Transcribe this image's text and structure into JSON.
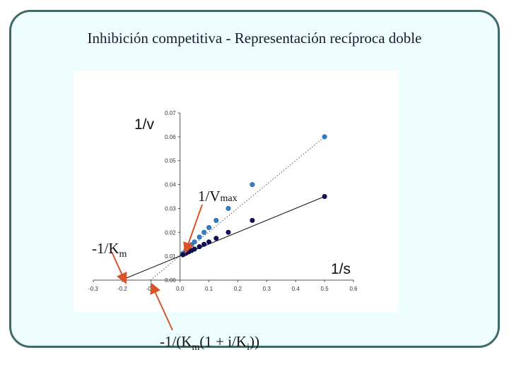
{
  "title": "Inhibición competitiva - Representación recíproca doble",
  "chart_data": {
    "type": "scatter",
    "xlabel": "1/s",
    "ylabel": "1/v",
    "xlim": [
      -0.3,
      0.6
    ],
    "ylim": [
      0,
      0.07
    ],
    "x_ticks": [
      "-0.3",
      "-0.2",
      "-0.1",
      "0.0",
      "0.1",
      "0.2",
      "0.3",
      "0.4",
      "0.5",
      "0.6"
    ],
    "y_ticks": [
      "0.00",
      "0.01",
      "0.02",
      "0.03",
      "0.04",
      "0.05",
      "0.06",
      "0.07"
    ],
    "grid": false,
    "series": [
      {
        "color": "#2f7fd0",
        "line_style": "dotted",
        "x": [
          0.01,
          0.02,
          0.03,
          0.04,
          0.05,
          0.067,
          0.083,
          0.1,
          0.125,
          0.167,
          0.25,
          0.5
        ],
        "y": [
          0.0112,
          0.0124,
          0.0136,
          0.0148,
          0.016,
          0.018,
          0.02,
          0.022,
          0.025,
          0.03,
          0.04,
          0.06
        ]
      },
      {
        "color": "#101060",
        "line_style": "solid",
        "x": [
          0.01,
          0.02,
          0.03,
          0.04,
          0.05,
          0.067,
          0.083,
          0.1,
          0.125,
          0.167,
          0.25,
          0.5
        ],
        "y": [
          0.0106,
          0.0112,
          0.0118,
          0.0124,
          0.013,
          0.014,
          0.015,
          0.016,
          0.0175,
          0.02,
          0.025,
          0.035
        ]
      }
    ],
    "annotations": {
      "vmax_base": "1/V",
      "vmax_sub": "max",
      "km_base": "-1/K",
      "km_sub": "m",
      "ki_p1": "-1/(K",
      "ki_sub1": "m",
      "ki_p2": "(1 + i/K",
      "ki_sub2": "i",
      "ki_p3": "))"
    },
    "annotation_color": "#d9542b"
  }
}
